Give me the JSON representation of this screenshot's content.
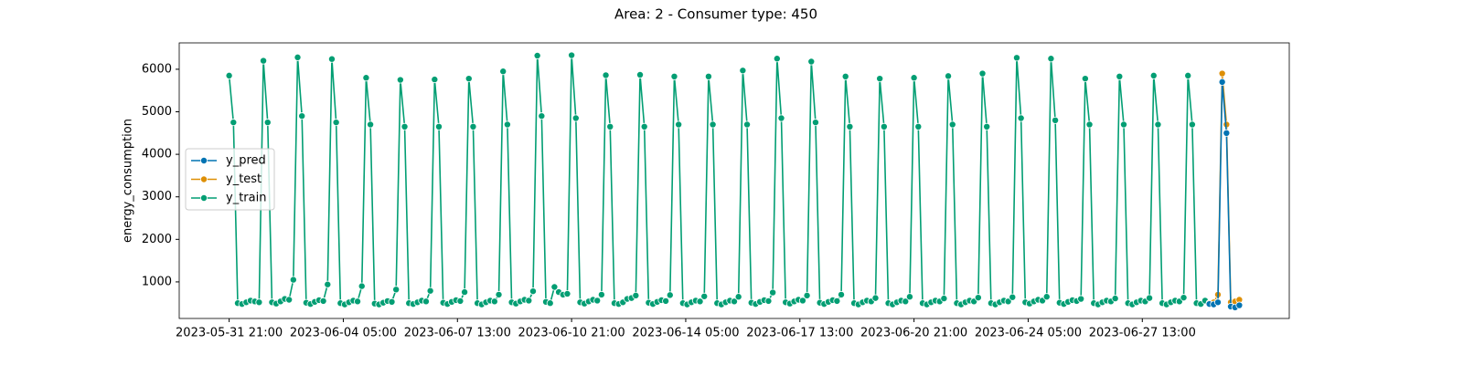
{
  "chart_data": {
    "type": "line",
    "title": "Area: 2 - Consumer type: 450",
    "y_label": "energy_consumption",
    "xlim": [
      "2023-05-30 10:00",
      "2023-07-01 20:00"
    ],
    "xticks": [
      "2023-05-31 21:00",
      "2023-06-04 05:00",
      "2023-06-07 13:00",
      "2023-06-10 21:00",
      "2023-06-14 05:00",
      "2023-06-17 13:00",
      "2023-06-20 21:00",
      "2023-06-24 05:00",
      "2023-06-27 13:00"
    ],
    "ylim": [
      140,
      6620
    ],
    "yticks": [
      1000,
      2000,
      3000,
      4000,
      5000,
      6000
    ],
    "grid": false,
    "legend": "left",
    "series": [
      {
        "name": "y_pred",
        "color": "#0173b2",
        "x": [
          "2023-06-29 12:00",
          "2023-06-29 15:00",
          "2023-06-29 18:00",
          "2023-06-29 21:00",
          "2023-06-30 00:00",
          "2023-06-30 03:00",
          "2023-06-30 06:00",
          "2023-06-30 09:00"
        ],
        "values": [
          480,
          470,
          520,
          5700,
          4500,
          420,
          400,
          450
        ]
      },
      {
        "name": "y_test",
        "color": "#de8f05",
        "x": [
          "2023-06-29 12:00",
          "2023-06-29 15:00",
          "2023-06-29 18:00",
          "2023-06-29 21:00",
          "2023-06-30 00:00",
          "2023-06-30 03:00",
          "2023-06-30 06:00",
          "2023-06-30 09:00"
        ],
        "values": [
          500,
          520,
          700,
          5900,
          4700,
          520,
          540,
          580
        ]
      },
      {
        "name": "y_train",
        "color": "#029e73",
        "x": [
          "2023-05-31 21:00",
          "2023-06-01 00:00",
          "2023-06-01 03:00",
          "2023-06-01 06:00",
          "2023-06-01 09:00",
          "2023-06-01 12:00",
          "2023-06-01 15:00",
          "2023-06-01 18:00",
          "2023-06-01 21:00",
          "2023-06-02 00:00",
          "2023-06-02 03:00",
          "2023-06-02 06:00",
          "2023-06-02 09:00",
          "2023-06-02 12:00",
          "2023-06-02 15:00",
          "2023-06-02 18:00",
          "2023-06-02 21:00",
          "2023-06-03 00:00",
          "2023-06-03 03:00",
          "2023-06-03 06:00",
          "2023-06-03 09:00",
          "2023-06-03 12:00",
          "2023-06-03 15:00",
          "2023-06-03 18:00",
          "2023-06-03 21:00",
          "2023-06-04 00:00",
          "2023-06-04 03:00",
          "2023-06-04 06:00",
          "2023-06-04 09:00",
          "2023-06-04 12:00",
          "2023-06-04 15:00",
          "2023-06-04 18:00",
          "2023-06-04 21:00",
          "2023-06-05 00:00",
          "2023-06-05 03:00",
          "2023-06-05 06:00",
          "2023-06-05 09:00",
          "2023-06-05 12:00",
          "2023-06-05 15:00",
          "2023-06-05 18:00",
          "2023-06-05 21:00",
          "2023-06-06 00:00",
          "2023-06-06 03:00",
          "2023-06-06 06:00",
          "2023-06-06 09:00",
          "2023-06-06 12:00",
          "2023-06-06 15:00",
          "2023-06-06 18:00",
          "2023-06-06 21:00",
          "2023-06-07 00:00",
          "2023-06-07 03:00",
          "2023-06-07 06:00",
          "2023-06-07 09:00",
          "2023-06-07 12:00",
          "2023-06-07 15:00",
          "2023-06-07 18:00",
          "2023-06-07 21:00",
          "2023-06-08 00:00",
          "2023-06-08 03:00",
          "2023-06-08 06:00",
          "2023-06-08 09:00",
          "2023-06-08 12:00",
          "2023-06-08 15:00",
          "2023-06-08 18:00",
          "2023-06-08 21:00",
          "2023-06-09 00:00",
          "2023-06-09 03:00",
          "2023-06-09 06:00",
          "2023-06-09 09:00",
          "2023-06-09 12:00",
          "2023-06-09 15:00",
          "2023-06-09 18:00",
          "2023-06-09 21:00",
          "2023-06-10 00:00",
          "2023-06-10 03:00",
          "2023-06-10 06:00",
          "2023-06-10 09:00",
          "2023-06-10 12:00",
          "2023-06-10 15:00",
          "2023-06-10 18:00",
          "2023-06-10 21:00",
          "2023-06-11 00:00",
          "2023-06-11 03:00",
          "2023-06-11 06:00",
          "2023-06-11 09:00",
          "2023-06-11 12:00",
          "2023-06-11 15:00",
          "2023-06-11 18:00",
          "2023-06-11 21:00",
          "2023-06-12 00:00",
          "2023-06-12 03:00",
          "2023-06-12 06:00",
          "2023-06-12 09:00",
          "2023-06-12 12:00",
          "2023-06-12 15:00",
          "2023-06-12 18:00",
          "2023-06-12 21:00",
          "2023-06-13 00:00",
          "2023-06-13 03:00",
          "2023-06-13 06:00",
          "2023-06-13 09:00",
          "2023-06-13 12:00",
          "2023-06-13 15:00",
          "2023-06-13 18:00",
          "2023-06-13 21:00",
          "2023-06-14 00:00",
          "2023-06-14 03:00",
          "2023-06-14 06:00",
          "2023-06-14 09:00",
          "2023-06-14 12:00",
          "2023-06-14 15:00",
          "2023-06-14 18:00",
          "2023-06-14 21:00",
          "2023-06-15 00:00",
          "2023-06-15 03:00",
          "2023-06-15 06:00",
          "2023-06-15 09:00",
          "2023-06-15 12:00",
          "2023-06-15 15:00",
          "2023-06-15 18:00",
          "2023-06-15 21:00",
          "2023-06-16 00:00",
          "2023-06-16 03:00",
          "2023-06-16 06:00",
          "2023-06-16 09:00",
          "2023-06-16 12:00",
          "2023-06-16 15:00",
          "2023-06-16 18:00",
          "2023-06-16 21:00",
          "2023-06-17 00:00",
          "2023-06-17 03:00",
          "2023-06-17 06:00",
          "2023-06-17 09:00",
          "2023-06-17 12:00",
          "2023-06-17 15:00",
          "2023-06-17 18:00",
          "2023-06-17 21:00",
          "2023-06-18 00:00",
          "2023-06-18 03:00",
          "2023-06-18 06:00",
          "2023-06-18 09:00",
          "2023-06-18 12:00",
          "2023-06-18 15:00",
          "2023-06-18 18:00",
          "2023-06-18 21:00",
          "2023-06-19 00:00",
          "2023-06-19 03:00",
          "2023-06-19 06:00",
          "2023-06-19 09:00",
          "2023-06-19 12:00",
          "2023-06-19 15:00",
          "2023-06-19 18:00",
          "2023-06-19 21:00",
          "2023-06-20 00:00",
          "2023-06-20 03:00",
          "2023-06-20 06:00",
          "2023-06-20 09:00",
          "2023-06-20 12:00",
          "2023-06-20 15:00",
          "2023-06-20 18:00",
          "2023-06-20 21:00",
          "2023-06-21 00:00",
          "2023-06-21 03:00",
          "2023-06-21 06:00",
          "2023-06-21 09:00",
          "2023-06-21 12:00",
          "2023-06-21 15:00",
          "2023-06-21 18:00",
          "2023-06-21 21:00",
          "2023-06-22 00:00",
          "2023-06-22 03:00",
          "2023-06-22 06:00",
          "2023-06-22 09:00",
          "2023-06-22 12:00",
          "2023-06-22 15:00",
          "2023-06-22 18:00",
          "2023-06-22 21:00",
          "2023-06-23 00:00",
          "2023-06-23 03:00",
          "2023-06-23 06:00",
          "2023-06-23 09:00",
          "2023-06-23 12:00",
          "2023-06-23 15:00",
          "2023-06-23 18:00",
          "2023-06-23 21:00",
          "2023-06-24 00:00",
          "2023-06-24 03:00",
          "2023-06-24 06:00",
          "2023-06-24 09:00",
          "2023-06-24 12:00",
          "2023-06-24 15:00",
          "2023-06-24 18:00",
          "2023-06-24 21:00",
          "2023-06-25 00:00",
          "2023-06-25 03:00",
          "2023-06-25 06:00",
          "2023-06-25 09:00",
          "2023-06-25 12:00",
          "2023-06-25 15:00",
          "2023-06-25 18:00",
          "2023-06-25 21:00",
          "2023-06-26 00:00",
          "2023-06-26 03:00",
          "2023-06-26 06:00",
          "2023-06-26 09:00",
          "2023-06-26 12:00",
          "2023-06-26 15:00",
          "2023-06-26 18:00",
          "2023-06-26 21:00",
          "2023-06-27 00:00",
          "2023-06-27 03:00",
          "2023-06-27 06:00",
          "2023-06-27 09:00",
          "2023-06-27 12:00",
          "2023-06-27 15:00",
          "2023-06-27 18:00",
          "2023-06-27 21:00",
          "2023-06-28 00:00",
          "2023-06-28 03:00",
          "2023-06-28 06:00",
          "2023-06-28 09:00",
          "2023-06-28 12:00",
          "2023-06-28 15:00",
          "2023-06-28 18:00",
          "2023-06-28 21:00",
          "2023-06-29 00:00",
          "2023-06-29 03:00",
          "2023-06-29 06:00",
          "2023-06-29 09:00"
        ],
        "values": [
          5850,
          4750,
          500,
          480,
          520,
          560,
          540,
          520,
          6200,
          4750,
          520,
          490,
          540,
          600,
          580,
          1050,
          6280,
          4900,
          510,
          480,
          530,
          570,
          550,
          940,
          6240,
          4750,
          500,
          470,
          520,
          560,
          540,
          900,
          5800,
          4700,
          490,
          470,
          510,
          550,
          530,
          820,
          5750,
          4650,
          500,
          480,
          520,
          560,
          540,
          790,
          5760,
          4650,
          510,
          480,
          530,
          570,
          550,
          760,
          5780,
          4650,
          500,
          470,
          520,
          560,
          540,
          700,
          5950,
          4700,
          520,
          490,
          540,
          580,
          560,
          780,
          6320,
          4900,
          530,
          500,
          880,
          760,
          700,
          720,
          6330,
          4850,
          520,
          490,
          540,
          580,
          560,
          700,
          5860,
          4650,
          500,
          480,
          520,
          600,
          620,
          680,
          5870,
          4650,
          510,
          480,
          530,
          570,
          550,
          690,
          5830,
          4700,
          500,
          470,
          520,
          560,
          540,
          660,
          5830,
          4700,
          500,
          470,
          520,
          560,
          540,
          650,
          5970,
          4700,
          510,
          480,
          530,
          570,
          550,
          750,
          6250,
          4850,
          520,
          490,
          540,
          580,
          560,
          680,
          6180,
          4750,
          510,
          480,
          530,
          570,
          550,
          700,
          5830,
          4650,
          500,
          470,
          520,
          560,
          540,
          620,
          5780,
          4650,
          500,
          470,
          520,
          560,
          540,
          650,
          5800,
          4650,
          500,
          470,
          520,
          560,
          540,
          610,
          5840,
          4700,
          500,
          470,
          520,
          560,
          540,
          630,
          5900,
          4650,
          500,
          470,
          520,
          560,
          540,
          640,
          6270,
          4850,
          520,
          490,
          540,
          580,
          560,
          650,
          6250,
          4800,
          510,
          480,
          530,
          570,
          550,
          600,
          5780,
          4700,
          500,
          470,
          520,
          560,
          540,
          610,
          5830,
          4700,
          500,
          470,
          520,
          560,
          540,
          620,
          5850,
          4700,
          500,
          470,
          520,
          560,
          540,
          630,
          5850,
          4700,
          500,
          480,
          560
        ]
      }
    ]
  }
}
